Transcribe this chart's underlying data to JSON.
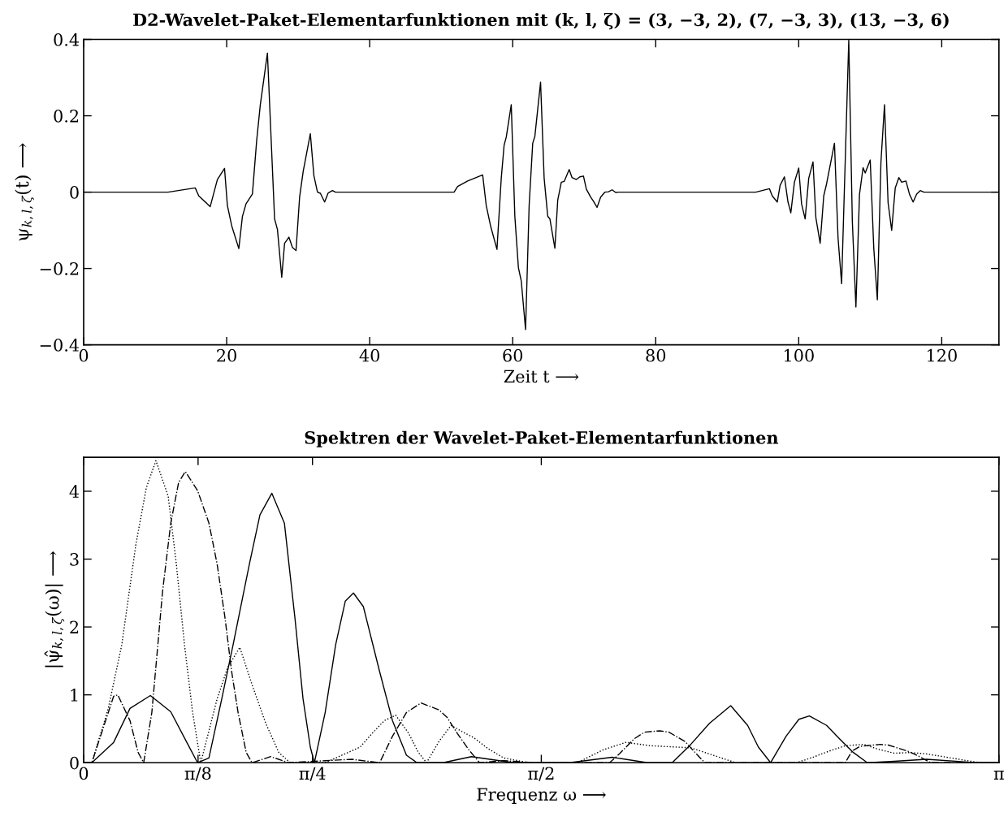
{
  "chart_data": [
    {
      "type": "line",
      "title": "D2-Wavelet-Paket-Elementarfunktionen mit (k, l, ζ) = (3, −3, 2), (7, −3, 3), (13, −3, 6)",
      "xlabel": "Zeit t ⟶",
      "ylabel": "ψ$_{k,l,ζ}$(t) ⟶",
      "xlim": [
        0,
        128
      ],
      "xticks": [
        0,
        20,
        40,
        60,
        80,
        100,
        120
      ],
      "ylim": [
        -0.4,
        0.4
      ],
      "yticks": [
        {
          "value": -0.4,
          "label": "−0.4"
        },
        {
          "value": -0.2,
          "label": "−0.2"
        },
        0,
        0.2,
        0.4
      ],
      "grid": false,
      "legend": false,
      "series": [
        {
          "color": "#000000",
          "line_style": "solid",
          "x": [
            0,
            11.8,
            15.6,
            16.1,
            17.7,
            18.7,
            19.7,
            20.1,
            20.7,
            21.7,
            22.2,
            22.7,
            23.6,
            24.2,
            24.7,
            25.7,
            26.7,
            27.1,
            27.7,
            28.1,
            28.7,
            29.2,
            29.7,
            30.2,
            30.7,
            31.7,
            32.2,
            32.7,
            33.1,
            33.7,
            34.2,
            34.8,
            35.2,
            51.8,
            52.3,
            53.7,
            55.8,
            56.3,
            56.9,
            57.8,
            58.4,
            58.8,
            59.1,
            59.8,
            60.3,
            60.8,
            61.2,
            61.8,
            62.3,
            62.8,
            63.1,
            63.9,
            64.4,
            64.9,
            65.2,
            65.9,
            66.3,
            66.8,
            67.2,
            67.9,
            68.3,
            68.9,
            69.4,
            69.9,
            70.3,
            70.9,
            71.3,
            71.8,
            72.3,
            72.9,
            73.4,
            73.9,
            74.4,
            74.8,
            94.0,
            95.9,
            96.3,
            97.0,
            97.4,
            98.0,
            98.5,
            98.9,
            99.4,
            100.0,
            100.4,
            100.9,
            101.4,
            102.0,
            102.4,
            103.0,
            103.5,
            103.9,
            105.0,
            105.5,
            106.0,
            107.0,
            107.5,
            108.0,
            108.5,
            109.0,
            109.3,
            110.0,
            110.5,
            111.0,
            111.5,
            112.0,
            112.5,
            113.0,
            113.5,
            114.0,
            114.4,
            115.0,
            115.5,
            116.0,
            116.5,
            117.0,
            117.5,
            128
          ],
          "values": [
            0,
            0,
            0.011,
            -0.01,
            -0.038,
            0.033,
            0.062,
            -0.035,
            -0.088,
            -0.148,
            -0.064,
            -0.031,
            -0.005,
            0.136,
            0.228,
            0.364,
            -0.07,
            -0.098,
            -0.223,
            -0.134,
            -0.118,
            -0.145,
            -0.153,
            -0.013,
            0.054,
            0.153,
            0.043,
            0,
            -0.003,
            -0.026,
            -0.002,
            0.004,
            0,
            0,
            0.015,
            0.029,
            0.045,
            -0.035,
            -0.088,
            -0.15,
            0.036,
            0.123,
            0.144,
            0.229,
            -0.063,
            -0.198,
            -0.233,
            -0.36,
            -0.035,
            0.128,
            0.146,
            0.288,
            0.036,
            -0.063,
            -0.07,
            -0.147,
            -0.021,
            0.026,
            0.028,
            0.059,
            0.038,
            0.033,
            0.04,
            0.042,
            0.008,
            -0.013,
            -0.024,
            -0.04,
            -0.013,
            0,
            0.001,
            0.006,
            -0.001,
            0,
            0,
            0.009,
            -0.01,
            -0.026,
            0.018,
            0.04,
            -0.026,
            -0.054,
            0.026,
            0.063,
            -0.031,
            -0.07,
            0.036,
            0.079,
            -0.067,
            -0.134,
            -0.01,
            0.022,
            0.128,
            -0.12,
            -0.24,
            0.398,
            -0.077,
            -0.301,
            -0.006,
            0.064,
            0.05,
            0.084,
            -0.148,
            -0.282,
            0.079,
            0.229,
            -0.028,
            -0.1,
            0.011,
            0.038,
            0.026,
            0.029,
            -0.006,
            -0.026,
            -0.005,
            0.004,
            0,
            0
          ]
        }
      ]
    },
    {
      "type": "line",
      "title": "Spektren der Wavelet-Paket-Elementarfunktionen",
      "xlabel": "Frequenz ω ⟶",
      "ylabel": "|ψ̂$_{k,l,ζ}$(ω)| ⟶",
      "xlim": [
        0,
        3.1416
      ],
      "xticks": [
        0,
        {
          "value": 0.3927,
          "label": "π/8"
        },
        {
          "value": 0.7854,
          "label": "π/4"
        },
        {
          "value": 1.5708,
          "label": "π/2"
        },
        {
          "value": 3.1416,
          "label": "π"
        }
      ],
      "ylim": [
        0,
        4.5
      ],
      "yticks": [
        0,
        1,
        2,
        3,
        4
      ],
      "grid": false,
      "legend": false,
      "series": [
        {
          "color": "#000000",
          "line_style": "solid",
          "x": [
            0,
            0.028,
            0.103,
            0.159,
            0.229,
            0.299,
            0.354,
            0.391,
            0.43,
            0.474,
            0.513,
            0.569,
            0.605,
            0.646,
            0.689,
            0.725,
            0.753,
            0.778,
            0.792,
            0.829,
            0.865,
            0.898,
            0.926,
            0.96,
            1.016,
            1.06,
            1.108,
            1.144,
            1.233,
            1.331,
            1.442,
            1.479,
            1.666,
            1.814,
            1.936,
            2.02,
            2.084,
            2.148,
            2.221,
            2.279,
            2.316,
            2.358,
            2.411,
            2.455,
            2.491,
            2.55,
            2.595,
            2.642,
            2.69,
            2.782,
            2.893,
            3.033,
            3.1416
          ],
          "values": [
            0,
            0,
            0.3,
            0.8,
            0.99,
            0.75,
            0.3,
            0,
            0.07,
            0.94,
            1.74,
            2.93,
            3.65,
            3.97,
            3.53,
            2.14,
            0.94,
            0.23,
            0,
            0.74,
            1.74,
            2.38,
            2.5,
            2.3,
            1.34,
            0.62,
            0.11,
            0,
            0,
            0.09,
            0.02,
            0,
            0,
            0.08,
            0,
            0,
            0.27,
            0.58,
            0.84,
            0.55,
            0.23,
            0,
            0.39,
            0.64,
            0.69,
            0.55,
            0.35,
            0.15,
            0,
            0.02,
            0.05,
            0.01,
            0
          ]
        },
        {
          "color": "#000000",
          "line_style": "dotted",
          "x": [
            0,
            0.028,
            0.084,
            0.131,
            0.179,
            0.215,
            0.248,
            0.29,
            0.318,
            0.346,
            0.374,
            0.402,
            0.458,
            0.494,
            0.536,
            0.578,
            0.625,
            0.67,
            0.709,
            0.829,
            0.949,
            0.99,
            1.032,
            1.071,
            1.116,
            1.149,
            1.177,
            1.219,
            1.261,
            1.311,
            1.339,
            1.387,
            1.442,
            1.526,
            1.694,
            1.783,
            1.861,
            1.945,
            2.084,
            2.168,
            2.238,
            2.447,
            2.503,
            2.558,
            2.614,
            2.678,
            2.726,
            2.782,
            2.837,
            2.893,
            2.949,
            3.005,
            3.075,
            3.1416
          ],
          "values": [
            0,
            0,
            0.79,
            1.74,
            3.21,
            4.05,
            4.45,
            3.93,
            2.93,
            1.74,
            0.74,
            0,
            0.94,
            1.4,
            1.7,
            1.15,
            0.58,
            0.15,
            0,
            0,
            0.23,
            0.43,
            0.62,
            0.7,
            0.43,
            0.15,
            0,
            0.31,
            0.55,
            0.43,
            0.37,
            0.21,
            0.07,
            0,
            0,
            0.19,
            0.3,
            0.25,
            0.22,
            0.1,
            0,
            0,
            0.08,
            0.17,
            0.25,
            0.27,
            0.2,
            0.14,
            0.15,
            0.13,
            0.09,
            0.05,
            0,
            0
          ]
        },
        {
          "color": "#000000",
          "line_style": "dashdot",
          "x": [
            0,
            0.028,
            0.103,
            0.117,
            0.159,
            0.187,
            0.206,
            0.234,
            0.271,
            0.299,
            0.326,
            0.349,
            0.391,
            0.43,
            0.458,
            0.485,
            0.508,
            0.53,
            0.558,
            0.578,
            0.642,
            0.703,
            0.829,
            0.921,
            1.016,
            1.06,
            1.108,
            1.158,
            1.219,
            1.247,
            1.283,
            1.322,
            1.359,
            1.442,
            1.554,
            1.805,
            1.839,
            1.889,
            1.925,
            1.978,
            2.009,
            2.065,
            2.09,
            2.132,
            2.614,
            2.637,
            2.664,
            2.734,
            2.762,
            2.829,
            2.86,
            2.907,
            3.1416
          ],
          "values": [
            0,
            0,
            0.98,
            1.0,
            0.62,
            0.15,
            0,
            0.74,
            2.53,
            3.53,
            4.13,
            4.29,
            4.01,
            3.53,
            2.93,
            2.14,
            1.34,
            0.74,
            0.15,
            0,
            0.09,
            0,
            0.03,
            0.05,
            0,
            0.39,
            0.74,
            0.88,
            0.78,
            0.67,
            0.43,
            0.19,
            0,
            0.03,
            0,
            0,
            0.13,
            0.35,
            0.45,
            0.47,
            0.45,
            0.31,
            0.19,
            0,
            0,
            0.17,
            0.24,
            0.27,
            0.26,
            0.17,
            0.11,
            0,
            0
          ]
        }
      ]
    }
  ]
}
